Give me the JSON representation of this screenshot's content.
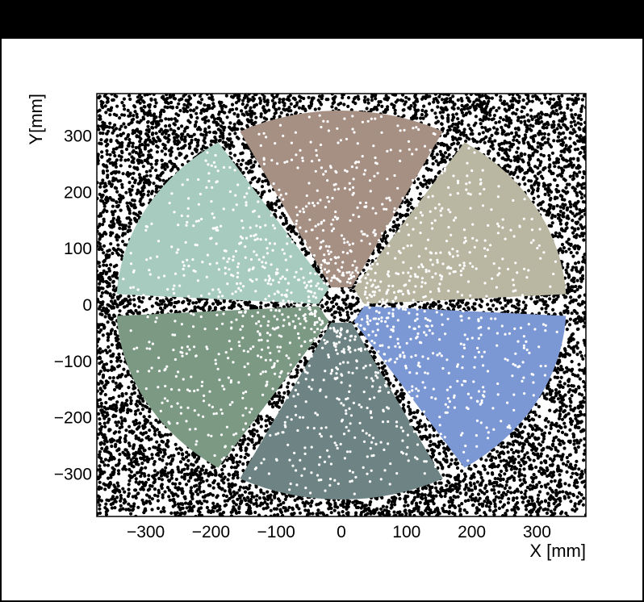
{
  "chart_data": {
    "type": "scatter",
    "title": "",
    "xlabel": "X [mm]",
    "ylabel": "Y[mm]",
    "xlim": [
      -375,
      375
    ],
    "ylim": [
      -375,
      375
    ],
    "x_ticks": [
      -300,
      -200,
      -100,
      0,
      100,
      200,
      300
    ],
    "x_tick_labels": [
      "−300",
      "−200",
      "−100",
      "0",
      "100",
      "200",
      "300"
    ],
    "y_ticks": [
      -300,
      -200,
      -100,
      0,
      100,
      200,
      300
    ],
    "y_tick_labels": [
      "−300",
      "−200",
      "−100",
      "0",
      "100",
      "200",
      "300"
    ],
    "grid": false,
    "legend": "none",
    "background_points_color": "#000000",
    "sector_radius_inner_mm": 15,
    "sector_radius_outer_mm": 345,
    "sectors": [
      {
        "angle_start_deg": 0,
        "angle_end_deg": 60,
        "color": "#b9b6a1"
      },
      {
        "angle_start_deg": 60,
        "angle_end_deg": 120,
        "color": "#a68f83"
      },
      {
        "angle_start_deg": 120,
        "angle_end_deg": 180,
        "color": "#a8cbc0"
      },
      {
        "angle_start_deg": 180,
        "angle_end_deg": 240,
        "color": "#7c9983"
      },
      {
        "angle_start_deg": 240,
        "angle_end_deg": 300,
        "color": "#6e8484"
      },
      {
        "angle_start_deg": 300,
        "angle_end_deg": 360,
        "color": "#7b98d4"
      }
    ]
  }
}
